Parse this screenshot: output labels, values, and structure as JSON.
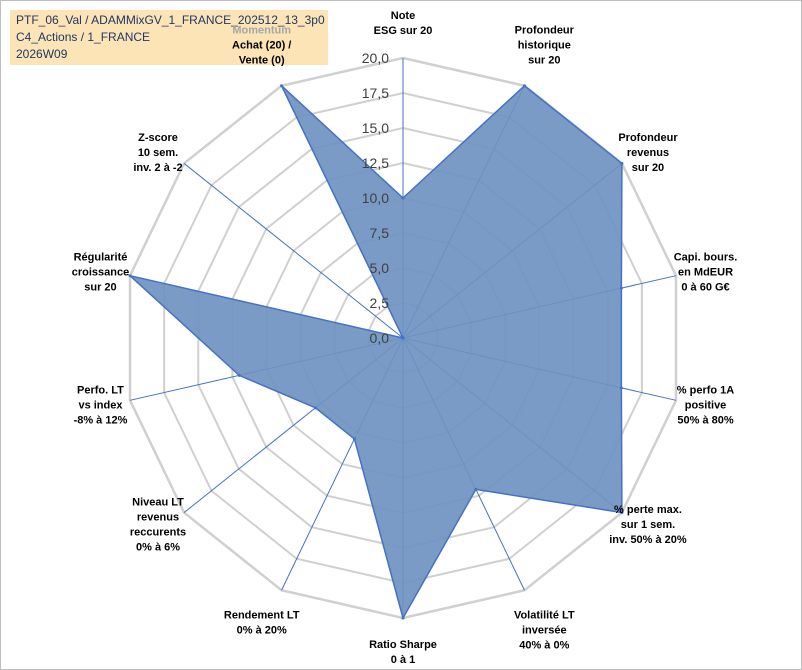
{
  "header": {
    "line1": "PTF_06_Val / ADAMMixGV_1_FRANCE_202512_13_3p0",
    "line2": "C4_Actions / 1_FRANCE",
    "line3": "2026W09"
  },
  "colors": {
    "fill": "#6f93c0",
    "line": "#4472c4",
    "grid": "#d0d0d0",
    "header_bg": "#fce4b6",
    "header_text": "#1f3864"
  },
  "chart_data": {
    "type": "radar",
    "title": "",
    "rmin": 0,
    "rmax": 20,
    "ticks": [
      "0,0",
      "2,5",
      "5,0",
      "7,5",
      "10,0",
      "12,5",
      "15,0",
      "17,5",
      "20,0"
    ],
    "axes": [
      {
        "lines": [
          "Note",
          "ESG sur 20"
        ],
        "value": 10
      },
      {
        "lines": [
          "Profondeur",
          "historique",
          "sur 20"
        ],
        "value": 20
      },
      {
        "lines": [
          "Profondeur",
          "revenus",
          "sur 20"
        ],
        "value": 20
      },
      {
        "lines": [
          "Capi. bours.",
          "en MdEUR",
          "0 à 60 G€"
        ],
        "value": 16
      },
      {
        "lines": [
          "% perfo 1A",
          "positive",
          "50% à 80%"
        ],
        "value": 16
      },
      {
        "lines": [
          "% perte max.",
          "sur 1 sem.",
          "inv. 50% à 20%"
        ],
        "value": 20
      },
      {
        "lines": [
          "Volatilité LT",
          "inversée",
          "40% à 0%"
        ],
        "value": 12
      },
      {
        "lines": [
          "Ratio Sharpe",
          "0 à 1"
        ],
        "value": 20
      },
      {
        "lines": [
          "Rendement LT",
          "0% à 20%"
        ],
        "value": 8
      },
      {
        "lines": [
          "Niveau LT",
          "revenus",
          "reccurents",
          "0% à 6%"
        ],
        "value": 8
      },
      {
        "lines": [
          "Perfo. LT",
          "vs index",
          "-8% à 12%"
        ],
        "value": 12
      },
      {
        "lines": [
          "Régularité",
          "croissance",
          "sur 20"
        ],
        "value": 20
      },
      {
        "lines": [
          "Z-score",
          "10 sem.",
          "inv. 2 à -2"
        ],
        "value": 0
      },
      {
        "lines": [
          "Momentum",
          "Achat (20) /",
          "Vente (0)"
        ],
        "value": 20
      }
    ],
    "series": [
      {
        "name": "PTF_06_Val",
        "values": [
          10,
          20,
          20,
          16,
          16,
          20,
          12,
          20,
          8,
          8,
          12,
          20,
          0,
          20
        ]
      }
    ]
  }
}
